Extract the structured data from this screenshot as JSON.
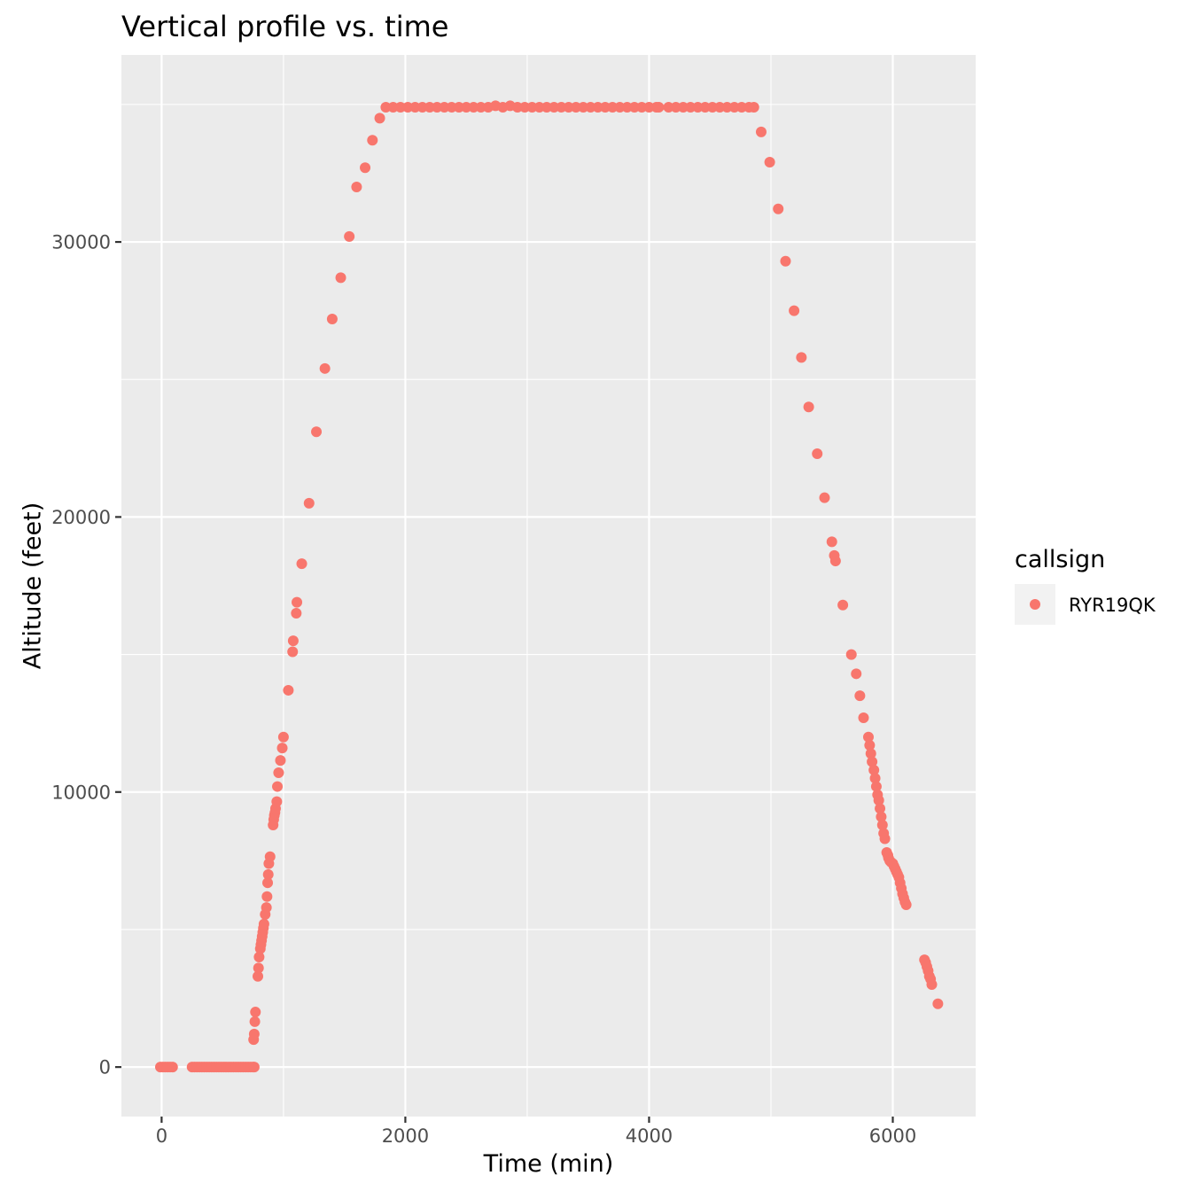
{
  "chart_data": {
    "type": "scatter",
    "title": "Vertical profile vs. time",
    "xlabel": "Time (min)",
    "ylabel": "Altitude (feet)",
    "xlim": [
      -330,
      6680
    ],
    "ylim": [
      -1800,
      36800
    ],
    "x_ticks": [
      0,
      2000,
      4000,
      6000
    ],
    "x_tick_labels": [
      "0",
      "2000",
      "4000",
      "6000"
    ],
    "y_ticks": [
      0,
      10000,
      20000,
      30000
    ],
    "y_tick_labels": [
      "0",
      "10000",
      "20000",
      "30000"
    ],
    "grid": true,
    "legend": {
      "title": "callsign",
      "position": "right",
      "entries": [
        "RYR19QK"
      ]
    },
    "series": [
      {
        "name": "RYR19QK",
        "color": "#F8766D",
        "points": [
          [
            -10,
            0
          ],
          [
            10,
            0
          ],
          [
            30,
            0
          ],
          [
            50,
            0
          ],
          [
            70,
            0
          ],
          [
            90,
            0
          ],
          [
            250,
            0
          ],
          [
            270,
            0
          ],
          [
            290,
            0
          ],
          [
            310,
            0
          ],
          [
            330,
            0
          ],
          [
            350,
            0
          ],
          [
            370,
            0
          ],
          [
            390,
            0
          ],
          [
            410,
            0
          ],
          [
            430,
            0
          ],
          [
            450,
            0
          ],
          [
            470,
            0
          ],
          [
            490,
            0
          ],
          [
            510,
            0
          ],
          [
            530,
            0
          ],
          [
            550,
            0
          ],
          [
            570,
            0
          ],
          [
            590,
            0
          ],
          [
            610,
            0
          ],
          [
            630,
            0
          ],
          [
            650,
            0
          ],
          [
            670,
            0
          ],
          [
            690,
            0
          ],
          [
            710,
            0
          ],
          [
            730,
            0
          ],
          [
            750,
            0
          ],
          [
            760,
            0
          ],
          [
            755,
            1000
          ],
          [
            760,
            1200
          ],
          [
            765,
            1650
          ],
          [
            770,
            2000
          ],
          [
            790,
            3300
          ],
          [
            795,
            3600
          ],
          [
            800,
            4000
          ],
          [
            810,
            4300
          ],
          [
            815,
            4450
          ],
          [
            820,
            4600
          ],
          [
            825,
            4750
          ],
          [
            830,
            4900
          ],
          [
            835,
            5050
          ],
          [
            840,
            5200
          ],
          [
            850,
            5550
          ],
          [
            860,
            5800
          ],
          [
            865,
            6200
          ],
          [
            870,
            6700
          ],
          [
            875,
            7000
          ],
          [
            880,
            7400
          ],
          [
            890,
            7650
          ],
          [
            915,
            8800
          ],
          [
            920,
            9000
          ],
          [
            925,
            9150
          ],
          [
            930,
            9250
          ],
          [
            935,
            9400
          ],
          [
            945,
            9650
          ],
          [
            950,
            10200
          ],
          [
            960,
            10700
          ],
          [
            975,
            11150
          ],
          [
            990,
            11600
          ],
          [
            1000,
            12000
          ],
          [
            1040,
            13700
          ],
          [
            1075,
            15100
          ],
          [
            1080,
            15500
          ],
          [
            1105,
            16500
          ],
          [
            1110,
            16900
          ],
          [
            1150,
            18300
          ],
          [
            1210,
            20500
          ],
          [
            1270,
            23100
          ],
          [
            1340,
            25400
          ],
          [
            1400,
            27200
          ],
          [
            1470,
            28700
          ],
          [
            1540,
            30200
          ],
          [
            1600,
            32000
          ],
          [
            1670,
            32700
          ],
          [
            1730,
            33700
          ],
          [
            1790,
            34500
          ],
          [
            1840,
            34900
          ],
          [
            1900,
            34900
          ],
          [
            1960,
            34900
          ],
          [
            2020,
            34900
          ],
          [
            2080,
            34900
          ],
          [
            2140,
            34900
          ],
          [
            2200,
            34900
          ],
          [
            2260,
            34900
          ],
          [
            2320,
            34900
          ],
          [
            2380,
            34900
          ],
          [
            2440,
            34900
          ],
          [
            2500,
            34900
          ],
          [
            2560,
            34900
          ],
          [
            2620,
            34900
          ],
          [
            2680,
            34900
          ],
          [
            2740,
            34950
          ],
          [
            2800,
            34900
          ],
          [
            2860,
            34950
          ],
          [
            2920,
            34900
          ],
          [
            2980,
            34900
          ],
          [
            3040,
            34900
          ],
          [
            3100,
            34900
          ],
          [
            3160,
            34900
          ],
          [
            3220,
            34900
          ],
          [
            3280,
            34900
          ],
          [
            3340,
            34900
          ],
          [
            3400,
            34900
          ],
          [
            3460,
            34900
          ],
          [
            3520,
            34900
          ],
          [
            3580,
            34900
          ],
          [
            3640,
            34900
          ],
          [
            3700,
            34900
          ],
          [
            3760,
            34900
          ],
          [
            3820,
            34900
          ],
          [
            3880,
            34900
          ],
          [
            3940,
            34900
          ],
          [
            4000,
            34900
          ],
          [
            4060,
            34900
          ],
          [
            4080,
            34900
          ],
          [
            4160,
            34900
          ],
          [
            4220,
            34900
          ],
          [
            4280,
            34900
          ],
          [
            4340,
            34900
          ],
          [
            4400,
            34900
          ],
          [
            4460,
            34900
          ],
          [
            4520,
            34900
          ],
          [
            4580,
            34900
          ],
          [
            4640,
            34900
          ],
          [
            4700,
            34900
          ],
          [
            4760,
            34900
          ],
          [
            4820,
            34900
          ],
          [
            4860,
            34900
          ],
          [
            4920,
            34000
          ],
          [
            4990,
            32900
          ],
          [
            5060,
            31200
          ],
          [
            5120,
            29300
          ],
          [
            5190,
            27500
          ],
          [
            5250,
            25800
          ],
          [
            5310,
            24000
          ],
          [
            5380,
            22300
          ],
          [
            5440,
            20700
          ],
          [
            5500,
            19100
          ],
          [
            5520,
            18600
          ],
          [
            5530,
            18400
          ],
          [
            5590,
            16800
          ],
          [
            5660,
            15000
          ],
          [
            5700,
            14300
          ],
          [
            5730,
            13500
          ],
          [
            5760,
            12700
          ],
          [
            5800,
            12000
          ],
          [
            5810,
            11700
          ],
          [
            5820,
            11400
          ],
          [
            5830,
            11100
          ],
          [
            5845,
            10800
          ],
          [
            5855,
            10500
          ],
          [
            5865,
            10200
          ],
          [
            5875,
            9900
          ],
          [
            5885,
            9700
          ],
          [
            5895,
            9400
          ],
          [
            5905,
            9100
          ],
          [
            5915,
            8800
          ],
          [
            5925,
            8500
          ],
          [
            5935,
            8300
          ],
          [
            5950,
            7800
          ],
          [
            5960,
            7700
          ],
          [
            5965,
            7600
          ],
          [
            5975,
            7500
          ],
          [
            5985,
            7450
          ],
          [
            6000,
            7400
          ],
          [
            6010,
            7300
          ],
          [
            6020,
            7200
          ],
          [
            6030,
            7100
          ],
          [
            6040,
            7000
          ],
          [
            6050,
            6900
          ],
          [
            6060,
            6700
          ],
          [
            6070,
            6500
          ],
          [
            6080,
            6300
          ],
          [
            6090,
            6150
          ],
          [
            6100,
            6000
          ],
          [
            6110,
            5900
          ],
          [
            6260,
            3900
          ],
          [
            6270,
            3800
          ],
          [
            6280,
            3650
          ],
          [
            6290,
            3500
          ],
          [
            6300,
            3300
          ],
          [
            6310,
            3200
          ],
          [
            6320,
            3000
          ],
          [
            6370,
            2300
          ]
        ]
      }
    ]
  }
}
